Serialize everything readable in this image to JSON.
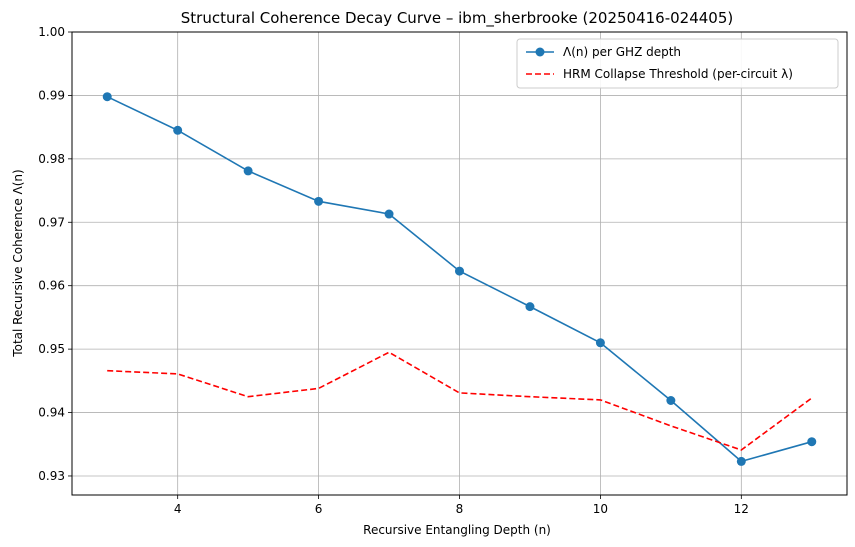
{
  "chart_data": {
    "type": "line",
    "title": "Structural Coherence Decay Curve – ibm_sherbrooke (20250416-024405)",
    "xlabel": "Recursive Entangling Depth (n)",
    "ylabel": "Total Recursive Coherence Λ(n)",
    "xlim": [
      2.5,
      13.5
    ],
    "ylim": [
      0.927,
      1.0
    ],
    "xticks": [
      4,
      6,
      8,
      10,
      12
    ],
    "yticks": [
      0.93,
      0.94,
      0.95,
      0.96,
      0.97,
      0.98,
      0.99,
      1.0
    ],
    "ytick_labels": [
      "0.93",
      "0.94",
      "0.95",
      "0.96",
      "0.97",
      "0.98",
      "0.99",
      "1.00"
    ],
    "grid": true,
    "legend_position": "top-right",
    "x": [
      3,
      4,
      5,
      6,
      7,
      8,
      9,
      10,
      11,
      12,
      13
    ],
    "series": [
      {
        "name": "Λ(n) per GHZ depth",
        "color": "#1f77b4",
        "style": "solid-markers",
        "values": [
          0.9898,
          0.9845,
          0.9781,
          0.9733,
          0.9713,
          0.9623,
          0.9567,
          0.951,
          0.9419,
          0.9323,
          0.9354
        ]
      },
      {
        "name": "HRM Collapse Threshold (per-circuit λ)",
        "color": "#ff0000",
        "style": "dashed",
        "values": [
          0.9466,
          0.9461,
          0.9425,
          0.9438,
          0.9495,
          0.9431,
          0.9425,
          0.942,
          0.9379,
          0.9341,
          0.9423
        ]
      }
    ]
  }
}
